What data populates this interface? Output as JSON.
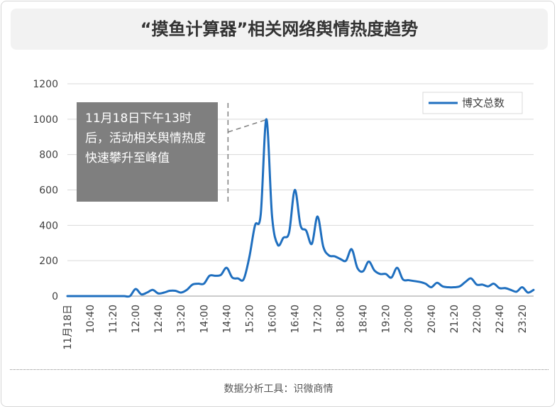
{
  "title": "“摸鱼计算器”相关网络舆情热度趋势",
  "footer": "数据分析工具：识微商情",
  "annotation": "11月18日下午13时后，活动相关舆情热度快速攀升至峰值",
  "chart_data": {
    "type": "line",
    "title": "“摸鱼计算器”相关网络舆情热度趋势",
    "xlabel": "",
    "ylabel": "",
    "ylim": [
      0,
      1200
    ],
    "yticks": [
      0,
      200,
      400,
      600,
      800,
      1000,
      1200
    ],
    "grid": true,
    "legend_position": "top-right",
    "x_tick_labels": [
      "11月18日",
      "10:40",
      "11:20",
      "12:00",
      "12:40",
      "13:20",
      "14:00",
      "14:40",
      "15:20",
      "16:00",
      "16:40",
      "17:20",
      "18:00",
      "18:40",
      "19:20",
      "20:00",
      "20:40",
      "21:20",
      "22:00",
      "22:40",
      "23:20"
    ],
    "series": [
      {
        "name": "博文总数",
        "color": "#1f6fbf",
        "points": [
          [
            "10:00",
            0
          ],
          [
            "10:10",
            0
          ],
          [
            "10:20",
            0
          ],
          [
            "10:30",
            0
          ],
          [
            "10:40",
            0
          ],
          [
            "10:50",
            0
          ],
          [
            "11:00",
            0
          ],
          [
            "11:10",
            0
          ],
          [
            "11:20",
            0
          ],
          [
            "11:30",
            0
          ],
          [
            "11:40",
            0
          ],
          [
            "11:50",
            0
          ],
          [
            "12:00",
            40
          ],
          [
            "12:10",
            10
          ],
          [
            "12:20",
            20
          ],
          [
            "12:30",
            35
          ],
          [
            "12:40",
            15
          ],
          [
            "12:50",
            20
          ],
          [
            "13:00",
            30
          ],
          [
            "13:10",
            30
          ],
          [
            "13:20",
            20
          ],
          [
            "13:30",
            35
          ],
          [
            "13:40",
            65
          ],
          [
            "13:50",
            70
          ],
          [
            "14:00",
            70
          ],
          [
            "14:10",
            115
          ],
          [
            "14:20",
            115
          ],
          [
            "14:30",
            120
          ],
          [
            "14:40",
            160
          ],
          [
            "14:50",
            105
          ],
          [
            "15:00",
            100
          ],
          [
            "15:10",
            95
          ],
          [
            "15:20",
            220
          ],
          [
            "15:30",
            400
          ],
          [
            "15:40",
            460
          ],
          [
            "15:50",
            1000
          ],
          [
            "16:00",
            450
          ],
          [
            "16:10",
            290
          ],
          [
            "16:20",
            330
          ],
          [
            "16:30",
            360
          ],
          [
            "16:40",
            600
          ],
          [
            "16:50",
            400
          ],
          [
            "17:00",
            370
          ],
          [
            "17:10",
            295
          ],
          [
            "17:20",
            450
          ],
          [
            "17:30",
            280
          ],
          [
            "17:40",
            230
          ],
          [
            "17:50",
            225
          ],
          [
            "18:00",
            210
          ],
          [
            "18:10",
            200
          ],
          [
            "18:20",
            265
          ],
          [
            "18:30",
            160
          ],
          [
            "18:40",
            140
          ],
          [
            "18:50",
            195
          ],
          [
            "19:00",
            145
          ],
          [
            "19:10",
            125
          ],
          [
            "19:20",
            125
          ],
          [
            "19:30",
            105
          ],
          [
            "19:40",
            160
          ],
          [
            "19:50",
            95
          ],
          [
            "20:00",
            90
          ],
          [
            "20:10",
            85
          ],
          [
            "20:20",
            80
          ],
          [
            "20:30",
            70
          ],
          [
            "20:40",
            50
          ],
          [
            "20:50",
            75
          ],
          [
            "21:00",
            55
          ],
          [
            "21:10",
            50
          ],
          [
            "21:20",
            50
          ],
          [
            "21:30",
            55
          ],
          [
            "21:40",
            80
          ],
          [
            "21:50",
            100
          ],
          [
            "22:00",
            65
          ],
          [
            "22:10",
            65
          ],
          [
            "22:20",
            55
          ],
          [
            "22:30",
            70
          ],
          [
            "22:40",
            45
          ],
          [
            "22:50",
            45
          ],
          [
            "23:00",
            35
          ],
          [
            "23:10",
            25
          ],
          [
            "23:20",
            50
          ],
          [
            "23:30",
            20
          ],
          [
            "23:40",
            35
          ]
        ]
      }
    ]
  }
}
